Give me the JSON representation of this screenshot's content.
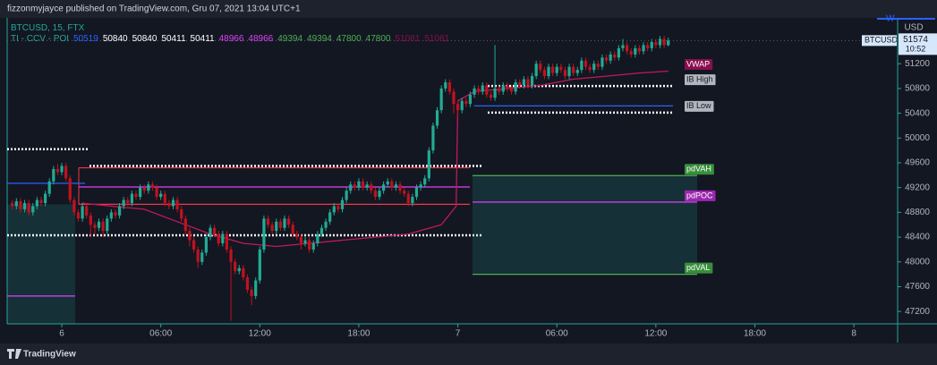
{
  "header": "fizzonmyjayce published on TradingView.com, Gru 07, 2021 13:04 UTC+1",
  "footer": "TradingView",
  "currency": "USD",
  "toolbar_letter": "W",
  "chart_data": {
    "type": "candlestick",
    "title": "BTCUSD, 15, FTX",
    "symbol_tag": "BTCUSD",
    "countdown": "10:52",
    "up_color": "#22ab94",
    "down_color": "#c1121f",
    "xlim": [
      -3.31,
      50.65
    ],
    "ylim": [
      47000,
      51940
    ],
    "yticks": [
      47200,
      47600,
      48000,
      48400,
      48800,
      49200,
      49600,
      50000,
      50400,
      50800,
      51200
    ],
    "xticks": [
      {
        "value": 0,
        "label": "6"
      },
      {
        "value": 6,
        "label": "06:00"
      },
      {
        "value": 12,
        "label": "12:00"
      },
      {
        "value": 18,
        "label": "18:00"
      },
      {
        "value": 24,
        "label": "7"
      },
      {
        "value": 30,
        "label": "06:00"
      },
      {
        "value": 36,
        "label": "12:00"
      },
      {
        "value": 42,
        "label": "18:00"
      },
      {
        "value": 48,
        "label": "8"
      }
    ],
    "x": [
      -3,
      -2.75,
      -2.5,
      -2.25,
      -2,
      -1.75,
      -1.5,
      -1.25,
      -1,
      -0.75,
      -0.5,
      -0.25,
      0,
      0.25,
      0.5,
      0.75,
      1,
      1.25,
      1.5,
      1.75,
      2,
      2.25,
      2.5,
      2.75,
      3,
      3.25,
      3.5,
      3.75,
      4,
      4.25,
      4.5,
      4.75,
      5,
      5.25,
      5.5,
      5.75,
      6,
      6.25,
      6.5,
      6.75,
      7,
      7.25,
      7.5,
      7.75,
      8,
      8.25,
      8.5,
      8.75,
      9,
      9.25,
      9.5,
      9.75,
      10,
      10.25,
      10.5,
      10.75,
      11,
      11.25,
      11.5,
      11.75,
      12,
      12.25,
      12.5,
      12.75,
      13,
      13.25,
      13.5,
      13.75,
      14,
      14.25,
      14.5,
      14.75,
      15,
      15.25,
      15.5,
      15.75,
      16,
      16.25,
      16.5,
      16.75,
      17,
      17.25,
      17.5,
      17.75,
      18,
      18.25,
      18.5,
      18.75,
      19,
      19.25,
      19.5,
      19.75,
      20,
      20.25,
      20.5,
      20.75,
      21,
      21.25,
      21.5,
      21.75,
      22,
      22.25,
      22.5,
      22.75,
      23,
      23.25,
      23.5,
      23.75,
      24,
      24.25,
      24.5,
      24.75,
      25,
      25.25,
      25.5,
      25.75,
      26,
      26.25,
      26.5,
      26.75,
      27,
      27.25,
      27.5,
      27.75,
      28,
      28.25,
      28.5,
      28.75,
      29,
      29.25,
      29.5,
      29.75,
      30,
      30.25,
      30.5,
      30.75,
      31,
      31.25,
      31.5,
      31.75,
      32,
      32.25,
      32.5,
      32.75,
      33,
      33.25,
      33.5,
      33.75,
      34,
      34.25,
      34.5,
      34.75,
      35,
      35.25,
      35.5,
      35.75,
      36,
      36.25,
      36.5,
      36.75
    ],
    "open": [
      48950,
      48900,
      48980,
      48850,
      48950,
      48800,
      48900,
      49000,
      48950,
      49100,
      49300,
      49500,
      49450,
      49550,
      49350,
      49000,
      48800,
      48700,
      48900,
      48750,
      48600,
      48550,
      48650,
      48500,
      48700,
      48800,
      48750,
      48900,
      49000,
      48950,
      49100,
      49050,
      49200,
      49150,
      49250,
      49200,
      49050,
      49100,
      48950,
      48900,
      49000,
      48850,
      48700,
      48500,
      48350,
      48200,
      48000,
      48150,
      48400,
      48550,
      48450,
      48300,
      48450,
      48200,
      48000,
      47850,
      47900,
      47750,
      47550,
      47450,
      47700,
      48200,
      48700,
      48600,
      48500,
      48650,
      48550,
      48700,
      48600,
      48450,
      48400,
      48300,
      48350,
      48200,
      48300,
      48450,
      48550,
      48650,
      48800,
      48900,
      48850,
      49000,
      49150,
      49250,
      49200,
      49300,
      49200,
      49250,
      49150,
      49050,
      49150,
      49250,
      49300,
      49200,
      49250,
      49150,
      49100,
      48950,
      49050,
      49200,
      49250,
      49350,
      49800,
      50200,
      50450,
      50800,
      50900,
      50750,
      50550,
      50450,
      50600,
      50550,
      50700,
      50800,
      50750,
      50850,
      50700,
      50650,
      50800,
      50750,
      50850,
      50800,
      50750,
      50900,
      50850,
      50950,
      50850,
      51000,
      51200,
      51100,
      51000,
      51150,
      51050,
      51150,
      51100,
      51000,
      51150,
      51050,
      51100,
      51250,
      51150,
      51100,
      51200,
      51150,
      51300,
      51250,
      51350,
      51300,
      51450,
      51500,
      51400,
      51350,
      51450,
      51400,
      51500,
      51450,
      51550,
      51500,
      51600,
      51500
    ],
    "high": [
      49000,
      49030,
      49030,
      49000,
      49000,
      48950,
      49050,
      49050,
      49150,
      49350,
      49550,
      49580,
      49600,
      49600,
      49400,
      49050,
      48850,
      48950,
      48950,
      48800,
      48650,
      48700,
      48700,
      48750,
      48850,
      48850,
      48950,
      49050,
      49050,
      49150,
      49150,
      49250,
      49250,
      49300,
      49300,
      49250,
      49150,
      49150,
      49000,
      49050,
      49050,
      48900,
      48750,
      48550,
      48400,
      48250,
      48200,
      48450,
      48600,
      48600,
      48500,
      48500,
      48500,
      48250,
      48050,
      47950,
      47950,
      47800,
      47600,
      47750,
      48250,
      48750,
      48750,
      48650,
      48700,
      48700,
      48750,
      48750,
      48650,
      48500,
      48450,
      48400,
      48400,
      48350,
      48500,
      48600,
      48700,
      48850,
      48950,
      48950,
      49050,
      49200,
      49300,
      49300,
      49350,
      49350,
      49300,
      49300,
      49200,
      49200,
      49300,
      49350,
      49350,
      49300,
      49300,
      49200,
      49150,
      49100,
      49250,
      49300,
      49400,
      49850,
      50250,
      50500,
      50850,
      50950,
      50950,
      50800,
      50600,
      50650,
      50650,
      50750,
      50850,
      50850,
      50900,
      50900,
      50750,
      51500,
      50850,
      50900,
      50900,
      50850,
      50950,
      50950,
      51000,
      51000,
      51050,
      51250,
      51250,
      51150,
      51200,
      51200,
      51200,
      51200,
      51150,
      51200,
      51200,
      51150,
      51300,
      51300,
      51200,
      51250,
      51250,
      51350,
      51350,
      51400,
      51400,
      51500,
      51600,
      51550,
      51450,
      51500,
      51500,
      51550,
      51550,
      51600,
      51600,
      51650,
      51650,
      51620
    ],
    "low": [
      48850,
      48850,
      48800,
      48800,
      48750,
      48750,
      48850,
      48900,
      48900,
      49050,
      49250,
      49400,
      49400,
      49300,
      48950,
      48750,
      48650,
      48650,
      48700,
      48400,
      48450,
      48500,
      48400,
      48450,
      48650,
      48700,
      48700,
      48850,
      48900,
      48900,
      49000,
      49000,
      49100,
      49100,
      49150,
      49000,
      49000,
      48900,
      48850,
      48850,
      48800,
      48650,
      48450,
      48250,
      48150,
      47900,
      47950,
      48100,
      48350,
      48400,
      48250,
      48250,
      48150,
      47050,
      47800,
      47800,
      47700,
      47500,
      47300,
      47400,
      47650,
      48150,
      48550,
      48450,
      48450,
      48500,
      48500,
      48550,
      48400,
      48350,
      48200,
      48250,
      48150,
      48150,
      48250,
      48400,
      48500,
      48600,
      48750,
      48800,
      48800,
      48950,
      49100,
      49150,
      49150,
      49150,
      49150,
      49100,
      49000,
      49000,
      49100,
      49200,
      49150,
      49150,
      49100,
      49050,
      48900,
      48900,
      49000,
      49150,
      49200,
      49300,
      49750,
      50150,
      50400,
      50750,
      50700,
      50400,
      50350,
      50400,
      50500,
      50500,
      50650,
      50700,
      50700,
      50650,
      50600,
      50600,
      50700,
      50700,
      50750,
      50700,
      50700,
      50800,
      50800,
      50800,
      50800,
      50950,
      51050,
      50950,
      50950,
      51000,
      51000,
      51050,
      50950,
      50950,
      51000,
      51000,
      51050,
      51100,
      51050,
      51050,
      51100,
      51100,
      51200,
      51200,
      51250,
      51250,
      51400,
      51350,
      51300,
      51300,
      51350,
      51350,
      51400,
      51400,
      51450,
      51450,
      51450,
      51480
    ],
    "close": [
      48900,
      48980,
      48850,
      48950,
      48800,
      48900,
      49000,
      48950,
      49100,
      49300,
      49500,
      49450,
      49550,
      49350,
      49000,
      48800,
      48700,
      48900,
      48750,
      48600,
      48550,
      48650,
      48500,
      48700,
      48800,
      48750,
      48900,
      49000,
      48950,
      49100,
      49050,
      49200,
      49150,
      49250,
      49200,
      49050,
      49100,
      48950,
      48900,
      49000,
      48850,
      48700,
      48500,
      48350,
      48200,
      48000,
      48150,
      48400,
      48550,
      48450,
      48300,
      48450,
      48200,
      48000,
      47850,
      47900,
      47750,
      47550,
      47450,
      47700,
      48200,
      48700,
      48600,
      48500,
      48650,
      48550,
      48700,
      48600,
      48450,
      48400,
      48300,
      48350,
      48200,
      48300,
      48450,
      48550,
      48650,
      48800,
      48900,
      48850,
      49000,
      49150,
      49250,
      49200,
      49300,
      49200,
      49250,
      49150,
      49050,
      49150,
      49250,
      49300,
      49200,
      49250,
      49150,
      49100,
      48950,
      49050,
      49200,
      49250,
      49350,
      49800,
      50200,
      50450,
      50800,
      50900,
      50750,
      50550,
      50450,
      50600,
      50550,
      50700,
      50800,
      50750,
      50850,
      50700,
      50650,
      50800,
      50750,
      50850,
      50800,
      50750,
      50900,
      50850,
      50950,
      50850,
      51000,
      51200,
      51100,
      51000,
      51150,
      51050,
      51150,
      51100,
      51000,
      51150,
      51050,
      51100,
      51250,
      51150,
      51100,
      51200,
      51150,
      51300,
      51250,
      51350,
      51300,
      51450,
      51500,
      51400,
      51350,
      51450,
      51400,
      51500,
      51450,
      51550,
      51500,
      51600,
      51500,
      51574
    ],
    "vwap": {
      "color": "#c2185b",
      "x": [
        1.2,
        3,
        5,
        7,
        9,
        11,
        13,
        15,
        17,
        19,
        21,
        23,
        23.9,
        24,
        25,
        27,
        29,
        31,
        33,
        35,
        36.75
      ],
      "values": [
        48950,
        48900,
        48850,
        48650,
        48450,
        48300,
        48250,
        48300,
        48350,
        48400,
        48450,
        48600,
        48900,
        50600,
        50750,
        50800,
        50850,
        50950,
        51000,
        51050,
        51081
      ]
    },
    "levels": [
      {
        "value": 49820,
        "color": "#ffffff",
        "style": "dotted"
      },
      {
        "value": 49550,
        "color": "#ffffff",
        "style": "dotted"
      },
      {
        "value": 48430,
        "color": "#ffffff",
        "style": "dotted"
      },
      {
        "value": 49270,
        "color": "#2962ff",
        "style": "solid"
      },
      {
        "value": 49520,
        "color": "#f23645",
        "style": "solid"
      },
      {
        "value": 49210,
        "color": "#e040fb",
        "style": "solid"
      },
      {
        "value": 48930,
        "color": "#f23645",
        "style": "solid"
      },
      {
        "value": 47450,
        "color": "#e040fb",
        "style": "solid"
      }
    ],
    "indicator": {
      "name": "TI - CCV - POI",
      "values": [
        50519,
        50840,
        50840,
        50411,
        50411,
        48966,
        48966,
        49394,
        49394,
        47800,
        47800,
        51081,
        51081
      ],
      "colors": [
        "#2962ff",
        "#ffffff",
        "#ffffff",
        "#ffffff",
        "#ffffff",
        "#e040fb",
        "#e040fb",
        "#4caf50",
        "#4caf50",
        "#4caf50",
        "#4caf50",
        "#880e4f",
        "#880e4f"
      ]
    },
    "level_labels": [
      {
        "text": "VWAP",
        "color": "#880e4f"
      },
      {
        "text": "IB High",
        "color": "#b2b5be"
      },
      {
        "text": "IB Low",
        "color": "#b2b5be"
      },
      {
        "text": "pdVAH",
        "color": "#388e3c"
      },
      {
        "text": "pdPOC",
        "color": "#9c27b0"
      },
      {
        "text": "pdVAL",
        "color": "#388e3c"
      }
    ]
  }
}
